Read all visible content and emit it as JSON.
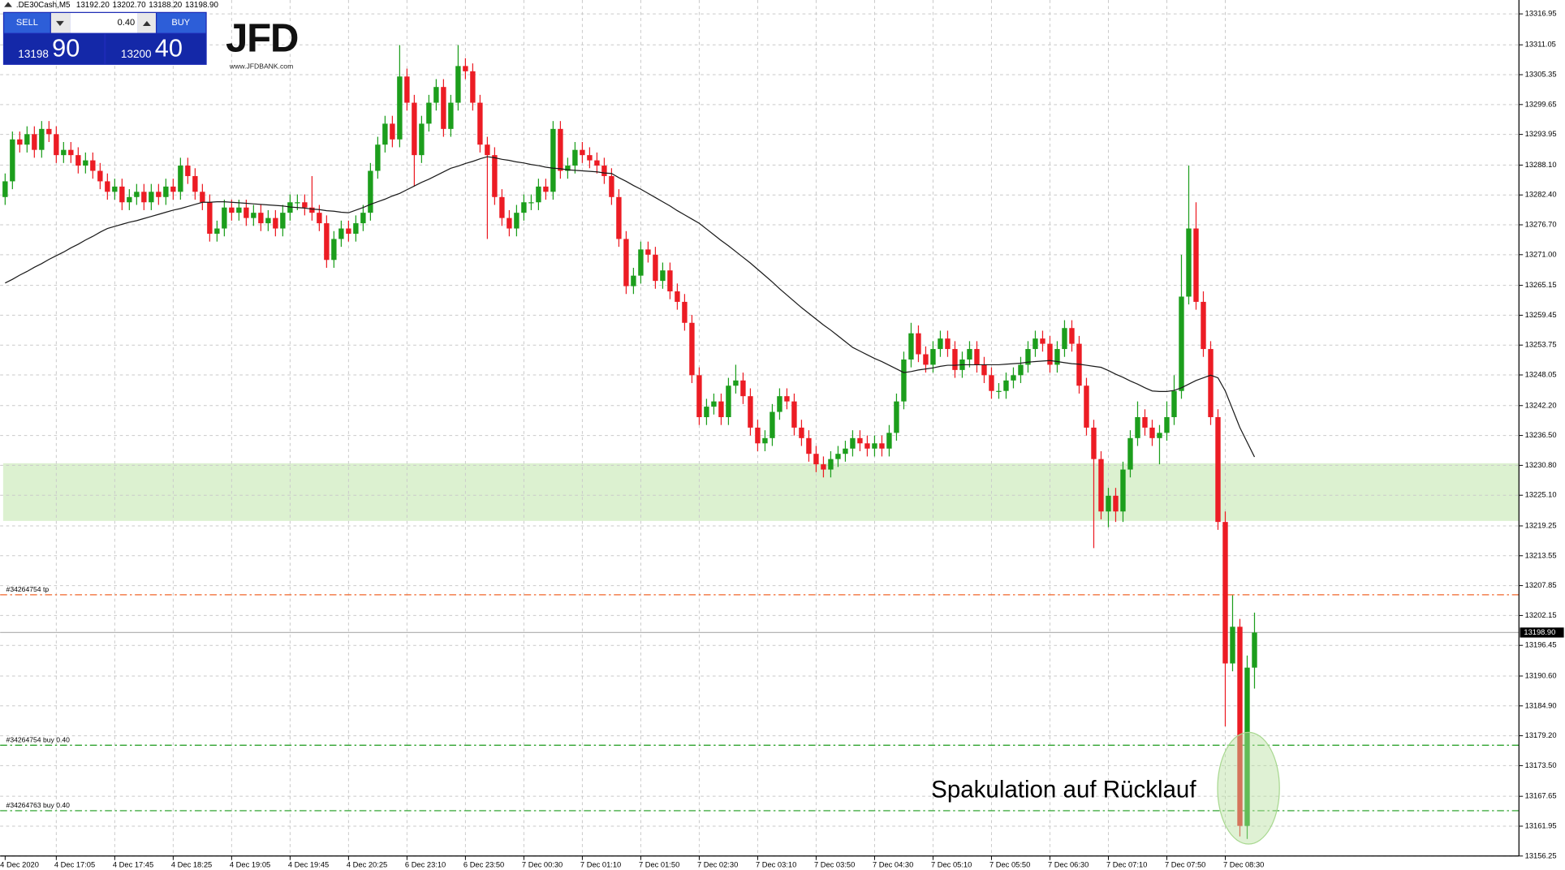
{
  "header": {
    "symbol": ".DE30Cash,M5",
    "prices": [
      {
        "value": 13192.2,
        "label": "13192.20"
      },
      {
        "value": 13202.7,
        "label": "13202.70"
      },
      {
        "value": 13188.2,
        "label": "13188.20"
      },
      {
        "value": 13198.9,
        "label": "13198.90"
      }
    ]
  },
  "trade_panel": {
    "sell": "SELL",
    "buy": "BUY",
    "lot": "0.40",
    "sell_price": {
      "main": "13198",
      "big": "90"
    },
    "buy_price": {
      "main": "13200",
      "big": "40"
    }
  },
  "logo": {
    "name": "JFD",
    "url": "www.JFDBANK.com"
  },
  "chart_data": {
    "type": "candlestick",
    "categories": [
      "4 Dec 2020",
      null,
      null,
      null,
      null,
      null,
      null,
      "4 Dec 17:05",
      null,
      null,
      null,
      null,
      null,
      null,
      null,
      "4 Dec 17:45",
      null,
      null,
      null,
      null,
      null,
      null,
      null,
      "4 Dec 18:25",
      null,
      null,
      null,
      null,
      null,
      null,
      null,
      "4 Dec 19:05",
      null,
      null,
      null,
      null,
      null,
      null,
      null,
      "4 Dec 19:45",
      null,
      null,
      null,
      null,
      null,
      null,
      null,
      "4 Dec 20:25",
      null,
      null,
      null,
      null,
      null,
      null,
      null,
      "6 Dec 23:10",
      null,
      null,
      null,
      null,
      null,
      null,
      null,
      "6 Dec 23:50",
      null,
      null,
      null,
      null,
      null,
      null,
      null,
      "7 Dec 00:30",
      null,
      null,
      null,
      null,
      null,
      null,
      null,
      "7 Dec 01:10",
      null,
      null,
      null,
      null,
      null,
      null,
      null,
      "7 Dec 01:50",
      null,
      null,
      null,
      null,
      null,
      null,
      null,
      "7 Dec 02:30",
      null,
      null,
      null,
      null,
      null,
      null,
      null,
      "7 Dec 03:10",
      null,
      null,
      null,
      null,
      null,
      null,
      null,
      "7 Dec 03:50",
      null,
      null,
      null,
      null,
      null,
      null,
      null,
      "7 Dec 04:30",
      null,
      null,
      null,
      null,
      null,
      null,
      null,
      "7 Dec 05:10",
      null,
      null,
      null,
      null,
      null,
      null,
      null,
      "7 Dec 05:50",
      null,
      null,
      null,
      null,
      null,
      null,
      null,
      "7 Dec 06:30",
      null,
      null,
      null,
      null,
      null,
      null,
      null,
      "7 Dec 07:10",
      null,
      null,
      null,
      null,
      null,
      null,
      null,
      "7 Dec 07:50",
      null,
      null,
      null,
      null,
      null,
      null,
      null,
      "7 Dec 08:30",
      null,
      null,
      null,
      null
    ],
    "open": [
      13282,
      13285,
      13293,
      13292,
      13294,
      13291,
      13295,
      13294,
      13290,
      13291,
      13290,
      13288,
      13289,
      13287,
      13285,
      13283,
      13284,
      13281,
      13282,
      13283,
      13281,
      13283,
      13282,
      13284,
      13283,
      13288,
      13286,
      13283,
      13281,
      13275,
      13276,
      13280,
      13279,
      13280,
      13278,
      13279,
      13277,
      13278,
      13276,
      13279,
      13281,
      13281,
      13280,
      13279,
      13277,
      13270,
      13274,
      13276,
      13275,
      13277,
      13279,
      13287,
      13292,
      13296,
      13293,
      13305,
      13300,
      13290,
      13296,
      13300,
      13303,
      13295,
      13300,
      13307,
      13306,
      13300,
      13292,
      13290,
      13282,
      13278,
      13276,
      13279,
      13281,
      13281,
      13284,
      13283,
      13295,
      13287,
      13288,
      13291,
      13290,
      13289,
      13288,
      13286,
      13282,
      13274,
      13265,
      13267,
      13272,
      13271,
      13266,
      13268,
      13264,
      13262,
      13258,
      13248,
      13240,
      13242,
      13243,
      13240,
      13246,
      13247,
      13244,
      13238,
      13235,
      13236,
      13241,
      13244,
      13243,
      13238,
      13236,
      13233,
      13231,
      13230,
      13232,
      13233,
      13234,
      13236,
      13235,
      13234,
      13235,
      13234,
      13237,
      13243,
      13251,
      13256,
      13252,
      13250,
      13253,
      13255,
      13253,
      13249,
      13251,
      13253,
      13250,
      13248,
      13245,
      13245,
      13247,
      13248,
      13250,
      13253,
      13255,
      13254,
      13250,
      13253,
      13257,
      13254,
      13246,
      13238,
      13232,
      13222,
      13225,
      13222,
      13230,
      13236,
      13240,
      13238,
      13236,
      13237,
      13240,
      13245,
      13263,
      13276,
      13262,
      13253,
      13240,
      13220,
      13193,
      13200,
      13162,
      13192.2
    ],
    "high": [
      13286.5,
      13294.5,
      13294.5,
      13295.5,
      13295.5,
      13296.5,
      13296.5,
      13295.5,
      13292.5,
      13292.5,
      13291.5,
      13290.5,
      13290.5,
      13288.5,
      13286.5,
      13285.5,
      13285.5,
      13283.5,
      13284.5,
      13284.5,
      13284.5,
      13284.5,
      13285.5,
      13285.5,
      13289.5,
      13289.5,
      13287.5,
      13284.5,
      13282.5,
      13277.5,
      13281.5,
      13281.5,
      13281.5,
      13281.5,
      13280.5,
      13280.5,
      13279.5,
      13279.5,
      13280.5,
      13282.5,
      13282.5,
      13282.5,
      13286,
      13280.5,
      13278.5,
      13275.5,
      13277.5,
      13277.5,
      13278.5,
      13280.5,
      13288.5,
      13293.5,
      13297.5,
      13297.5,
      13311,
      13306.5,
      13301.5,
      13297.5,
      13301.5,
      13304.5,
      13304.5,
      13301.5,
      13311,
      13308.5,
      13307.5,
      13301.5,
      13293.5,
      13291.5,
      13283.5,
      13279.5,
      13280.5,
      13282.5,
      13282.5,
      13285.5,
      13285.5,
      13296.5,
      13296.5,
      13289.5,
      13292.5,
      13292.5,
      13291.5,
      13290.5,
      13289.5,
      13287.5,
      13283.5,
      13275.5,
      13268.5,
      13273.5,
      13273.5,
      13272.5,
      13269.5,
      13269.5,
      13265.5,
      13263.5,
      13259.5,
      13249.5,
      13243.5,
      13244.5,
      13244.5,
      13247.5,
      13250,
      13248.5,
      13245.5,
      13239.5,
      13237.5,
      13242.5,
      13245.5,
      13245.5,
      13244.5,
      13239.5,
      13237.5,
      13234.5,
      13232.5,
      13233.5,
      13234.5,
      13235.5,
      13237.5,
      13237.5,
      13236.5,
      13236.5,
      13236.5,
      13238.5,
      13244.5,
      13252.5,
      13258,
      13257.5,
      13253.5,
      13254.5,
      13256.5,
      13256.5,
      13254.5,
      13252.5,
      13254.5,
      13254.5,
      13251.5,
      13249.5,
      13246.5,
      13248.5,
      13249.5,
      13251.5,
      13254.5,
      13256.5,
      13256.5,
      13255.5,
      13254.5,
      13258.5,
      13258.5,
      13255.5,
      13247.5,
      13239.5,
      13233.5,
      13226.5,
      13226.5,
      13231.5,
      13237.5,
      13243,
      13241.5,
      13239.5,
      13238.5,
      13243,
      13248,
      13271,
      13288,
      13281,
      13264,
      13254.5,
      13241.5,
      13222,
      13206,
      13201.5,
      13194.5,
      13202.7
    ],
    "low": [
      13280.5,
      13283.5,
      13290.5,
      13290.5,
      13289.5,
      13289.5,
      13292.5,
      13288.5,
      13288.5,
      13288.5,
      13286.5,
      13286.5,
      13285.5,
      13283.5,
      13281.5,
      13281.5,
      13279.5,
      13279.5,
      13280.5,
      13279.5,
      13279.5,
      13280.5,
      13280.5,
      13281.5,
      13281.5,
      13284.5,
      13281.5,
      13279.5,
      13273.5,
      13273.5,
      13274.5,
      13277.5,
      13277.5,
      13276.5,
      13276.5,
      13275.5,
      13275.5,
      13274.5,
      13274.5,
      13277.5,
      13279.5,
      13278.5,
      13277.5,
      13275.5,
      13268.5,
      13268.5,
      13272.5,
      13273.5,
      13273.5,
      13275.5,
      13277.5,
      13285.5,
      13290.5,
      13291.5,
      13291.5,
      13298.5,
      13284,
      13288.5,
      13294.5,
      13298.5,
      13293.5,
      13293.5,
      13298.5,
      13304.5,
      13298.5,
      13290.5,
      13274,
      13280.5,
      13276.5,
      13274.5,
      13274.5,
      13277.5,
      13279.5,
      13279.5,
      13281.5,
      13281.5,
      13285.5,
      13285.5,
      13286.5,
      13288.5,
      13287.5,
      13286.5,
      13284.5,
      13280.5,
      13272.5,
      13263.5,
      13263.5,
      13265.5,
      13269.5,
      13264.5,
      13264.5,
      13262.5,
      13260.5,
      13256.5,
      13246.5,
      13238.5,
      13238.5,
      13240.5,
      13238.5,
      13238.5,
      13244.5,
      13242.5,
      13236.5,
      13233.5,
      13233.5,
      13234.5,
      13239.5,
      13241.5,
      13236.5,
      13234.5,
      13231.5,
      13229.5,
      13228.5,
      13228.5,
      13230.5,
      13231.5,
      13232.5,
      13233.5,
      13232.5,
      13232.5,
      13232.5,
      13232.5,
      13235.5,
      13241.5,
      13249.5,
      13250.5,
      13248.5,
      13248.5,
      13251.5,
      13251.5,
      13247.5,
      13247.5,
      13249.5,
      13248.5,
      13246.5,
      13243.5,
      13243.5,
      13243.5,
      13245.5,
      13246.5,
      13248.5,
      13251.5,
      13252.5,
      13248.5,
      13248.5,
      13251.5,
      13252.5,
      13244.5,
      13236.5,
      13215,
      13220.5,
      13219,
      13220,
      13220,
      13228.5,
      13234.5,
      13236.5,
      13234.5,
      13231,
      13235.5,
      13238.5,
      13243.5,
      13261.5,
      13260.5,
      13251.5,
      13238.5,
      13218.5,
      13181,
      13191.5,
      13160,
      13159.5,
      13188.2
    ],
    "close": [
      13285,
      13293,
      13292,
      13294,
      13291,
      13295,
      13294,
      13290,
      13291,
      13290,
      13288,
      13289,
      13287,
      13285,
      13283,
      13284,
      13281,
      13282,
      13283,
      13281,
      13283,
      13282,
      13284,
      13283,
      13288,
      13286,
      13283,
      13281,
      13275,
      13276,
      13280,
      13279,
      13280,
      13278,
      13279,
      13277,
      13278,
      13276,
      13279,
      13281,
      13281,
      13280,
      13279,
      13277,
      13270,
      13274,
      13276,
      13275,
      13277,
      13279,
      13287,
      13292,
      13296,
      13293,
      13305,
      13300,
      13290,
      13296,
      13300,
      13303,
      13295,
      13300,
      13307,
      13306,
      13300,
      13292,
      13290,
      13282,
      13278,
      13276,
      13279,
      13281,
      13281,
      13284,
      13283,
      13295,
      13287,
      13288,
      13291,
      13290,
      13289,
      13288,
      13286,
      13282,
      13274,
      13265,
      13267,
      13272,
      13271,
      13266,
      13268,
      13264,
      13262,
      13258,
      13248,
      13240,
      13242,
      13243,
      13240,
      13246,
      13247,
      13244,
      13238,
      13235,
      13236,
      13241,
      13244,
      13243,
      13238,
      13236,
      13233,
      13231,
      13230,
      13232,
      13233,
      13234,
      13236,
      13235,
      13234,
      13235,
      13234,
      13237,
      13243,
      13251,
      13256,
      13252,
      13250,
      13253,
      13255,
      13253,
      13249,
      13251,
      13253,
      13250,
      13248,
      13245,
      13245,
      13247,
      13248,
      13250,
      13253,
      13255,
      13254,
      13250,
      13253,
      13257,
      13254,
      13246,
      13238,
      13232,
      13222,
      13225,
      13222,
      13230,
      13236,
      13240,
      13238,
      13236,
      13237,
      13240,
      13245,
      13263,
      13276,
      13262,
      13253,
      13240,
      13220,
      13193,
      13200,
      13162,
      13192.2,
      13198.9
    ],
    "up_color": "#1c9e1c",
    "down_color": "#ec1c24",
    "moving_average": {
      "color": "#1a1a1a",
      "values": [
        13265.6,
        13266.3,
        13267.1,
        13267.8,
        13268.6,
        13269.3,
        13270.1,
        13270.8,
        13271.5,
        13272.3,
        13273,
        13273.8,
        13274.5,
        13275.3,
        13276,
        13276.4,
        13276.8,
        13277.2,
        13277.5,
        13277.9,
        13278.3,
        13278.7,
        13279.1,
        13279.5,
        13279.8,
        13280.2,
        13280.6,
        13281,
        13281,
        13281.1,
        13281.1,
        13281,
        13280.9,
        13280.8,
        13280.7,
        13280.6,
        13280.5,
        13280.4,
        13280.3,
        13280.1,
        13280,
        13279.9,
        13279.7,
        13279.6,
        13279.4,
        13279.3,
        13279.1,
        13279,
        13279.5,
        13280,
        13280.6,
        13281.1,
        13281.6,
        13282.2,
        13282.7,
        13283.4,
        13284.1,
        13284.8,
        13285.4,
        13286.1,
        13286.8,
        13287.5,
        13287.9,
        13288.4,
        13288.8,
        13289.3,
        13289.7,
        13289.5,
        13289.2,
        13289,
        13288.7,
        13288.5,
        13288.2,
        13288,
        13287.7,
        13287.5,
        13287.4,
        13287.2,
        13287.1,
        13287,
        13286.9,
        13286.8,
        13286.6,
        13286.5,
        13285.7,
        13285,
        13284.2,
        13283.5,
        13282.7,
        13281.9,
        13281.1,
        13280.3,
        13279.4,
        13278.6,
        13277.8,
        13277,
        13275.9,
        13274.8,
        13273.7,
        13272.7,
        13271.6,
        13270.5,
        13269.4,
        13268.2,
        13267,
        13265.8,
        13264.5,
        13263.3,
        13262.1,
        13260.9,
        13259.8,
        13258.7,
        13257.6,
        13256.6,
        13255.5,
        13254.4,
        13253.3,
        13252.6,
        13251.9,
        13251.2,
        13250.6,
        13249.9,
        13249.2,
        13248.5,
        13248.7,
        13249,
        13249.2,
        13249.4,
        13249.7,
        13249.9,
        13249.9,
        13250,
        13250,
        13250,
        13250,
        13250,
        13250,
        13250.1,
        13250.2,
        13250.3,
        13250.5,
        13250.6,
        13250.7,
        13250.8,
        13250.6,
        13250.4,
        13250.2,
        13250.1,
        13249.9,
        13249.7,
        13249.5,
        13248.9,
        13248.2,
        13247.6,
        13246.9,
        13246.3,
        13245.6,
        13245,
        13244.9,
        13244.9,
        13245.1,
        13245.6,
        13246.3,
        13247,
        13247.5,
        13248,
        13247.5,
        13245,
        13241.5,
        13238,
        13235.2,
        13232.4
      ]
    },
    "ylim": [
      13156.25,
      13319.6
    ],
    "yticks": [
      13316.95,
      13311.05,
      13305.35,
      13299.65,
      13293.95,
      {
        "value": 13288.1,
        "label": "13288.10"
      },
      {
        "value": 13282.4,
        "label": "13282.40"
      },
      {
        "value": 13276.7,
        "label": "13276.70"
      },
      {
        "value": 13271,
        "label": "13271.00"
      },
      13265.15,
      13259.45,
      13253.75,
      13248.05,
      {
        "value": 13242.2,
        "label": "13242.20"
      },
      {
        "value": 13236.5,
        "label": "13236.50"
      },
      {
        "value": 13230.8,
        "label": "13230.80"
      },
      {
        "value": 13225.1,
        "label": "13225.10"
      },
      13219.25,
      13213.55,
      13207.85,
      13202.15,
      13196.45,
      {
        "value": 13190.6,
        "label": "13190.60"
      },
      {
        "value": 13184.9,
        "label": "13184.90"
      },
      {
        "value": 13179.2,
        "label": "13179.20"
      },
      {
        "value": 13173.5,
        "label": "13173.50"
      },
      13167.65,
      13161.95,
      13156.25
    ],
    "grid": true,
    "current_price": {
      "value": 13198.9,
      "label": "13198.90"
    },
    "levels": [
      {
        "label": "#34264754 tp",
        "value": 13206.1,
        "color": "#f0662a"
      },
      {
        "label": "#34264754 buy 0.40",
        "value": 13177.4,
        "color": "#1a9a1a"
      },
      {
        "label": "#34264763 buy 0.40",
        "value": 13164.9,
        "color": "#1a9a1a"
      }
    ],
    "zones": [
      {
        "from": 13220.2,
        "to": 13231.2,
        "color": "#dcf1d0"
      }
    ],
    "annotation": "Spakulation auf Rücklauf"
  }
}
